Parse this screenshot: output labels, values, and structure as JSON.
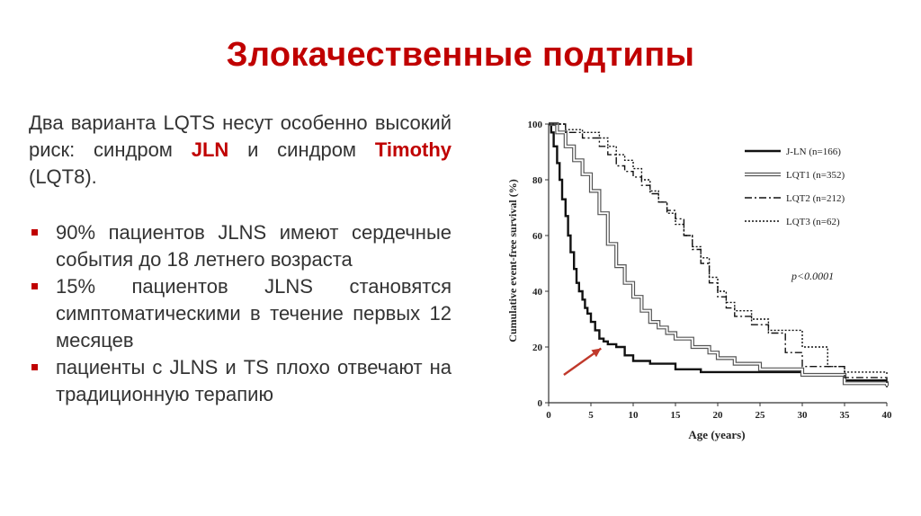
{
  "slide": {
    "title": "Злокачественные подтипы",
    "intro": {
      "part1": "Два варианта LQTS несут особенно высокий риск: синдром ",
      "jln": "JLN",
      "part2": " и синдром ",
      "timothy": "Timothy",
      "part3": " (LQT8)."
    },
    "bullets": [
      "90% пациентов JLNS имеют сердечные события до 18 летнего возраста",
      "15% пациентов JLNS становятся симптоматическими в течение первых 12 месяцев",
      "пациенты с JLNS и TS плохо отвечают на традиционную терапию"
    ],
    "accent_color": "#c00000"
  },
  "chart_data": {
    "type": "line",
    "xlabel": "Age (years)",
    "ylabel": "Cumulative event-free survival (%)",
    "xlim": [
      0,
      40
    ],
    "ylim": [
      0,
      100
    ],
    "xticks": [
      0,
      5,
      10,
      15,
      20,
      25,
      30,
      35,
      40
    ],
    "yticks": [
      0,
      20,
      40,
      60,
      80,
      100
    ],
    "annotation": "p<0.0001",
    "legend_position": "top-right",
    "arrow_annotation": {
      "from": [
        1.8,
        10
      ],
      "to": [
        6.2,
        19.5
      ],
      "color": "#c0392b"
    },
    "series": [
      {
        "name": "J-LN (n=166)",
        "style": "solid-thick",
        "x": [
          0,
          0.3,
          0.6,
          1,
          1.3,
          1.6,
          2,
          2.3,
          2.6,
          3,
          3.3,
          3.6,
          4,
          4.3,
          4.6,
          5,
          5.5,
          6,
          6.5,
          7,
          8,
          9,
          10,
          12,
          15,
          18,
          20,
          25,
          30,
          35,
          40
        ],
        "y": [
          100,
          97,
          92,
          86,
          80,
          73,
          67,
          60,
          54,
          48,
          43,
          40,
          37,
          34,
          32,
          29,
          26,
          23,
          22,
          21,
          20,
          17,
          15,
          14,
          12,
          11,
          11,
          11,
          10,
          8,
          8
        ]
      },
      {
        "name": "LQT1 (n=352)",
        "style": "double-outline",
        "x": [
          0,
          1,
          2,
          3,
          4,
          5,
          6,
          7,
          8,
          9,
          10,
          11,
          12,
          13,
          14,
          15,
          17,
          19,
          20,
          22,
          25,
          30,
          35,
          40
        ],
        "y": [
          100,
          97,
          92,
          87,
          82,
          76,
          68,
          57,
          49,
          43,
          38,
          33,
          29,
          27,
          25,
          23,
          20,
          18,
          16,
          14,
          12,
          10,
          7,
          6
        ]
      },
      {
        "name": "LQT2 (n=212)",
        "style": "dash-dot",
        "x": [
          0,
          2,
          4,
          6,
          7,
          8,
          9,
          10,
          11,
          12,
          13,
          14,
          15,
          16,
          17,
          18,
          19,
          20,
          21,
          22,
          24,
          26,
          28,
          30,
          35,
          40
        ],
        "y": [
          100,
          97,
          95,
          92,
          89,
          85,
          83,
          81,
          78,
          75,
          72,
          69,
          66,
          60,
          55,
          50,
          43,
          38,
          34,
          31,
          28,
          25,
          18,
          13,
          9,
          5
        ]
      },
      {
        "name": "LQT3 (n=62)",
        "style": "dotted",
        "x": [
          0,
          2,
          4,
          6,
          7,
          8,
          9,
          10,
          11,
          12,
          13,
          14,
          15,
          16,
          17,
          18,
          19,
          20,
          21,
          22,
          24,
          26,
          30,
          33,
          35,
          40
        ],
        "y": [
          100,
          98,
          97,
          95,
          92,
          89,
          87,
          84,
          80,
          76,
          72,
          68,
          64,
          60,
          56,
          52,
          45,
          40,
          36,
          33,
          30,
          26,
          20,
          13,
          11,
          10
        ]
      }
    ]
  }
}
